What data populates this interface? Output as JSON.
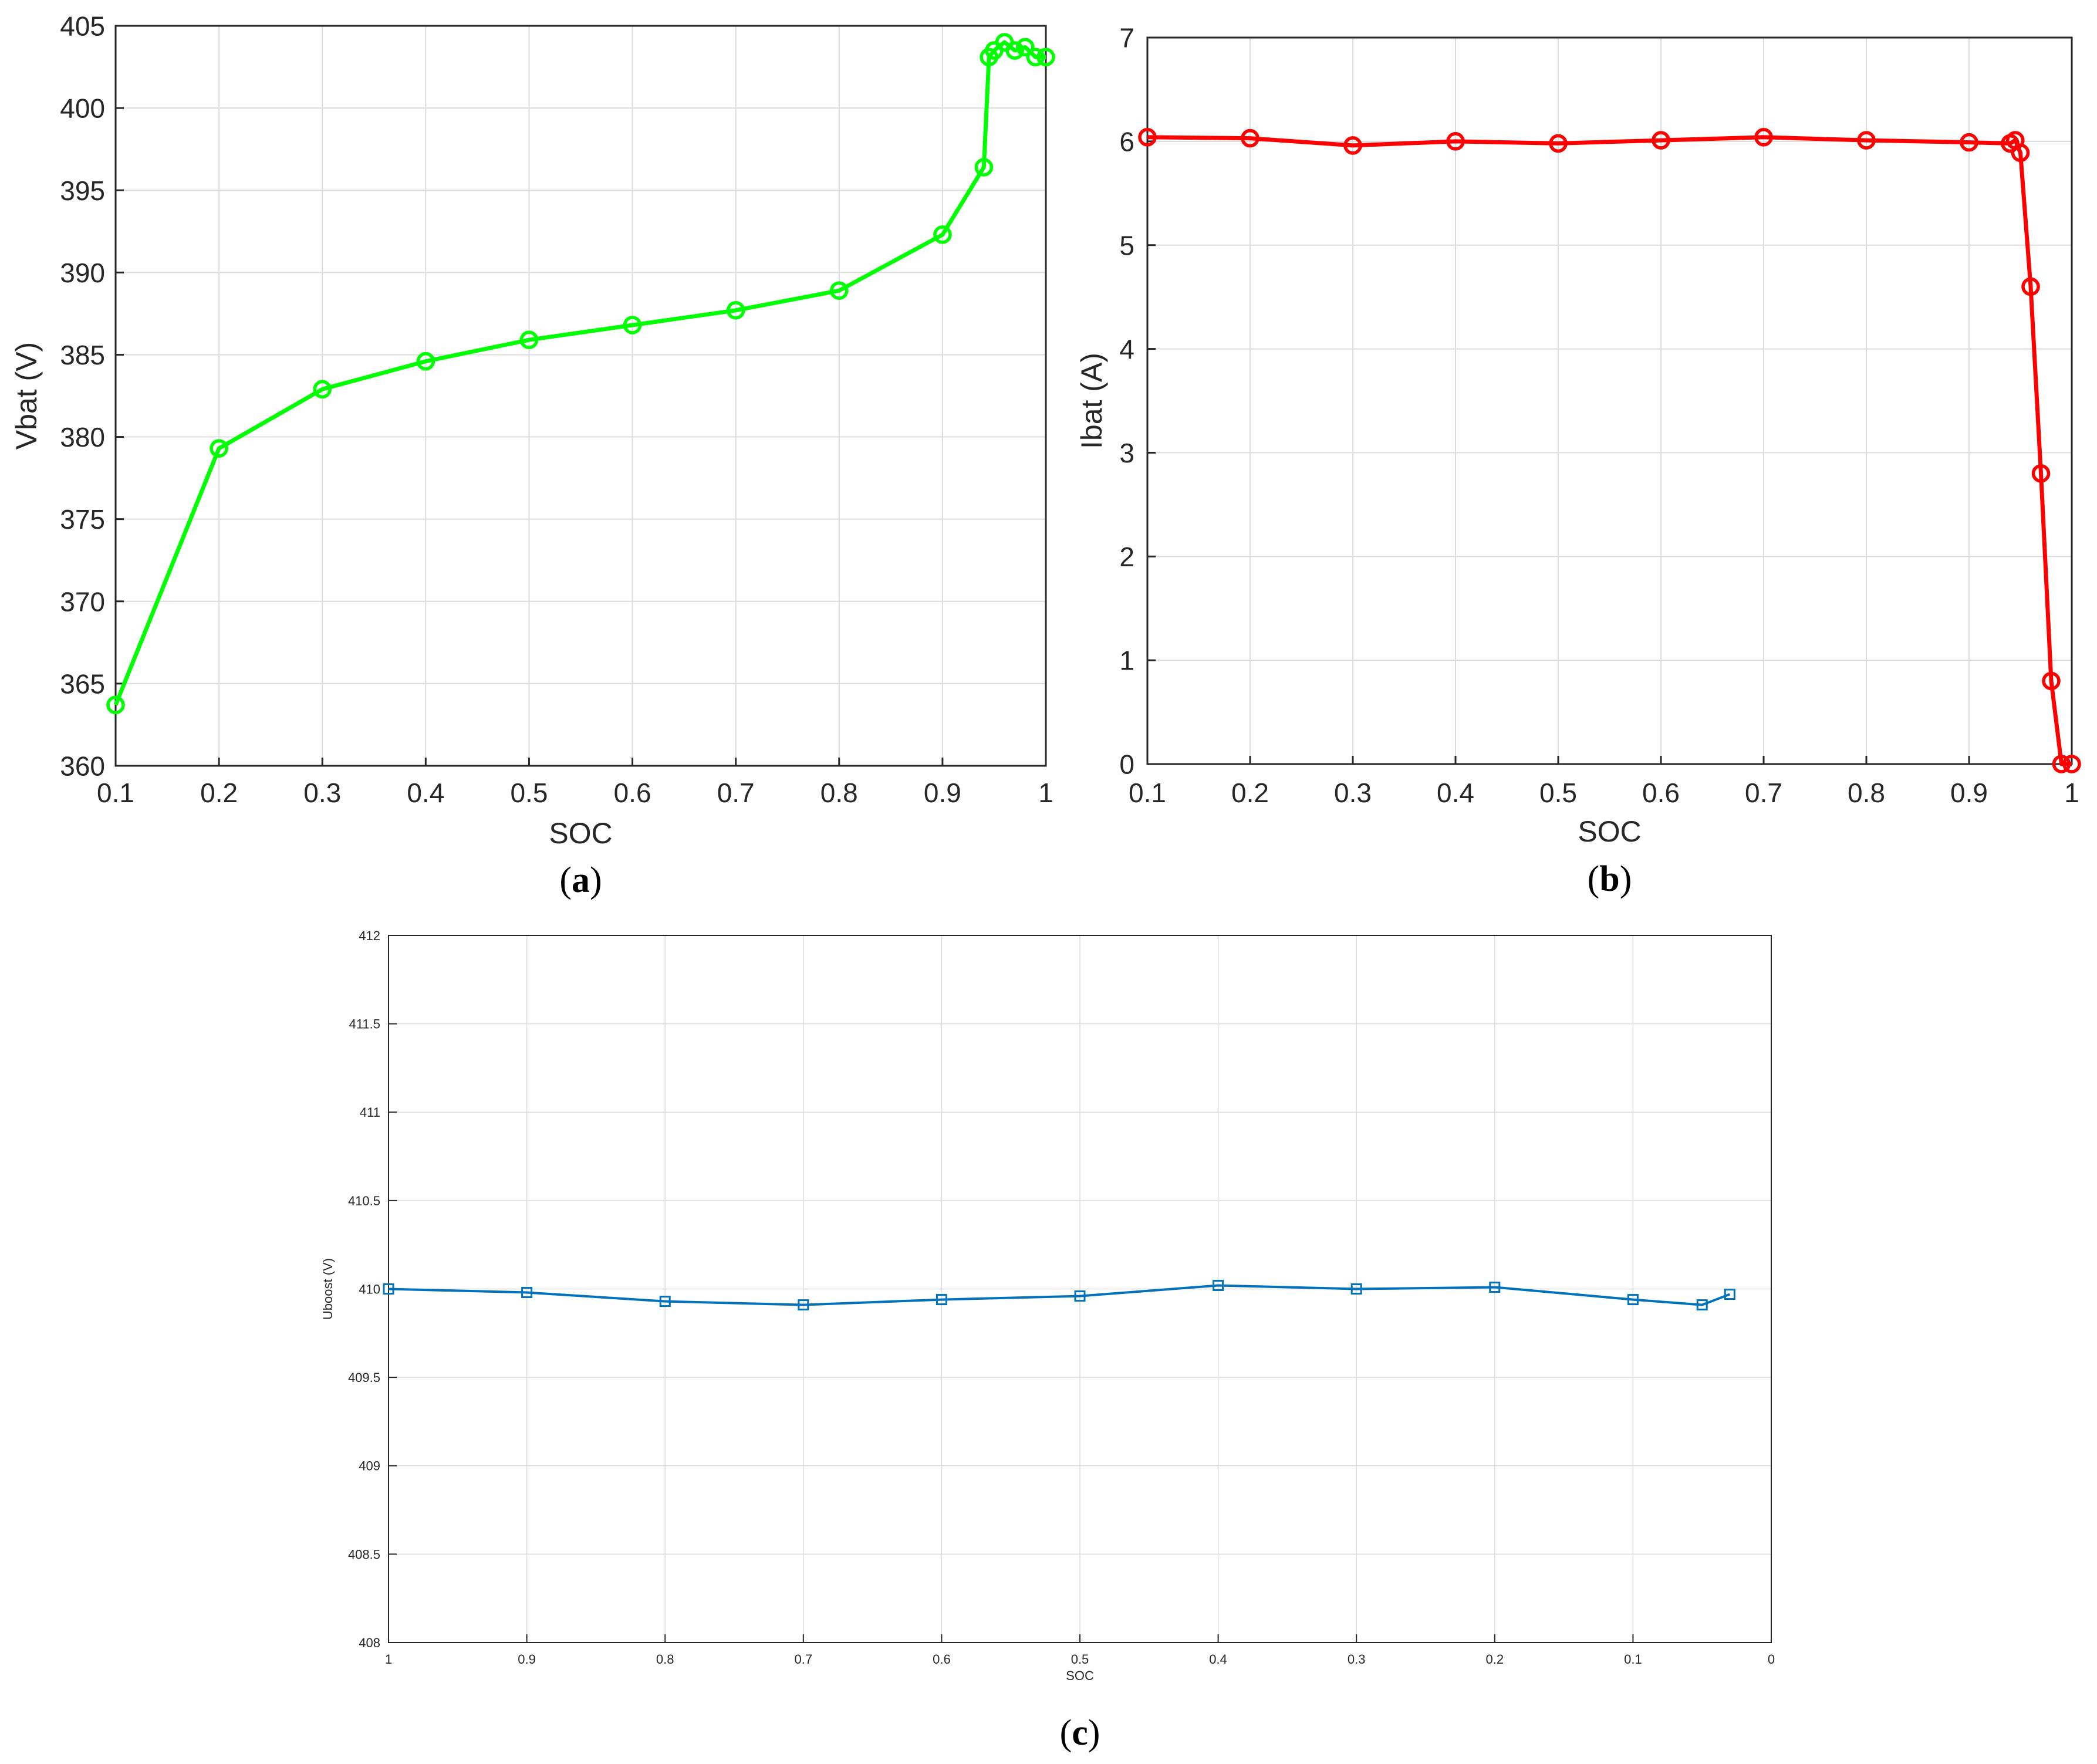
{
  "chart_data": [
    {
      "type": "line",
      "xlabel": "SOC",
      "ylabel": "Vbat (V)",
      "xlim": [
        0.1,
        1
      ],
      "ylim": [
        360,
        405
      ],
      "xticks": [
        "0.1",
        "0.2",
        "0.3",
        "0.4",
        "0.5",
        "0.6",
        "0.7",
        "0.8",
        "0.9",
        "1"
      ],
      "yticks": [
        "360",
        "365",
        "370",
        "375",
        "380",
        "385",
        "390",
        "395",
        "400",
        "405"
      ],
      "grid": true,
      "marker": "circle",
      "color": "#00ff00",
      "caption_letter": "a",
      "series": [
        {
          "x": [
            0.1,
            0.2,
            0.3,
            0.4,
            0.5,
            0.6,
            0.7,
            0.8,
            0.9,
            0.94,
            0.945,
            0.95,
            0.96,
            0.97,
            0.98,
            0.99,
            1.0
          ],
          "y": [
            363.7,
            379.3,
            382.9,
            384.6,
            385.9,
            386.8,
            387.7,
            388.9,
            392.3,
            396.4,
            403.1,
            403.5,
            404.0,
            403.5,
            403.7,
            403.1,
            403.1
          ]
        }
      ]
    },
    {
      "type": "line",
      "xlabel": "SOC",
      "ylabel": "Ibat (A)",
      "xlim": [
        0.1,
        1
      ],
      "ylim": [
        0,
        7
      ],
      "xticks": [
        "0.1",
        "0.2",
        "0.3",
        "0.4",
        "0.5",
        "0.6",
        "0.7",
        "0.8",
        "0.9",
        "1"
      ],
      "yticks": [
        "0",
        "1",
        "2",
        "3",
        "4",
        "5",
        "6",
        "7"
      ],
      "grid": true,
      "marker": "circle",
      "color": "#ff0000",
      "caption_letter": "b",
      "series": [
        {
          "x": [
            0.1,
            0.2,
            0.3,
            0.4,
            0.5,
            0.6,
            0.7,
            0.8,
            0.9,
            0.94,
            0.945,
            0.95,
            0.96,
            0.97,
            0.98,
            0.99,
            1.0
          ],
          "y": [
            6.04,
            6.03,
            5.96,
            6.0,
            5.98,
            6.01,
            6.04,
            6.01,
            5.99,
            5.98,
            6.01,
            5.89,
            4.6,
            2.8,
            0.8,
            0.0,
            0.0
          ]
        }
      ]
    },
    {
      "type": "line",
      "xlabel": "SOC",
      "ylabel": "Uboost (V)",
      "xlim": [
        1,
        0
      ],
      "ylim": [
        408,
        412
      ],
      "xticks": [
        "1",
        "0.9",
        "0.8",
        "0.7",
        "0.6",
        "0.5",
        "0.4",
        "0.3",
        "0.2",
        "0.1",
        "0"
      ],
      "yticks": [
        "408",
        "408.5",
        "409",
        "409.5",
        "410",
        "410.5",
        "411",
        "411.5",
        "412"
      ],
      "grid": true,
      "marker": "square",
      "color": "#0072bd",
      "caption_letter": "c",
      "series": [
        {
          "x": [
            1.0,
            0.9,
            0.8,
            0.7,
            0.6,
            0.5,
            0.4,
            0.3,
            0.2,
            0.1,
            0.05,
            0.03
          ],
          "y": [
            410.0,
            409.98,
            409.93,
            409.91,
            409.94,
            409.96,
            410.02,
            410.0,
            410.01,
            409.94,
            409.91,
            409.97
          ]
        }
      ]
    }
  ]
}
